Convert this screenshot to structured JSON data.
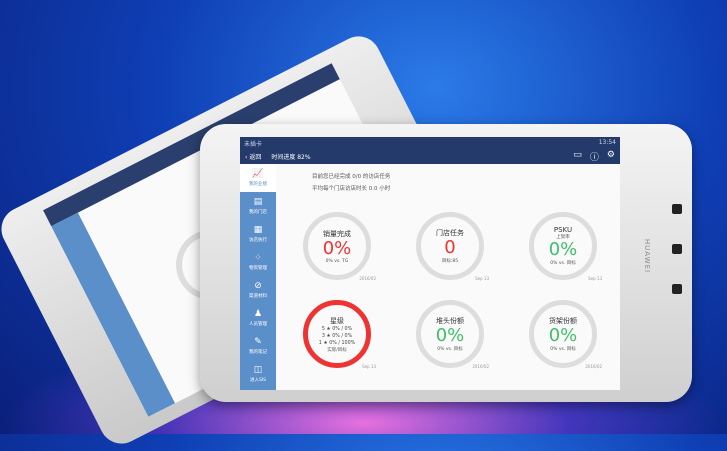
{
  "status": {
    "carrier": "未插卡",
    "time": "13:54"
  },
  "nav": {
    "back": "返回",
    "progress": "时间进度 82%"
  },
  "sidebar": [
    {
      "label": "我的业绩",
      "icon": "chart-icon"
    },
    {
      "label": "我的门店",
      "icon": "store-icon"
    },
    {
      "label": "访店执行",
      "icon": "clipboard-icon"
    },
    {
      "label": "物资管理",
      "icon": "grid-icon"
    },
    {
      "label": "渠道材料",
      "icon": "paperclip-icon"
    },
    {
      "label": "人员管理",
      "icon": "people-icon"
    },
    {
      "label": "我的笔记",
      "icon": "note-icon"
    },
    {
      "label": "进入SIS",
      "icon": "enter-icon"
    }
  ],
  "info": {
    "line1": "目前您已经完成 0/0 的访店任务",
    "line2": "平均每个门店访店时长 0.0 小时"
  },
  "cards": [
    {
      "title": "销量完成",
      "value": "0%",
      "sub": "0% vs. TG",
      "date": "2016/02",
      "color": "#e33333"
    },
    {
      "title": "门店任务",
      "value": "0",
      "sub": "目标:85",
      "date": "Sep 13",
      "color": "#e33333"
    },
    {
      "title": "PSKU",
      "subtitle": "上架率",
      "value": "0%",
      "sub": "0% vs. 目标",
      "date": "Sep 13",
      "color": "#3fbf6a"
    },
    {
      "title": "星级",
      "rows": [
        "5 ★ 0% / 0%",
        "3 ★ 0% / 0%",
        "1 ★ 0% / 100%"
      ],
      "sub": "实际/目标",
      "date": "Sep 13"
    },
    {
      "title": "堆头份额",
      "value": "0%",
      "sub": "0% vs. 目标",
      "date": "2016/02",
      "color": "#3fbf6a"
    },
    {
      "title": "货架份额",
      "value": "0%",
      "sub": "0% vs. 目标",
      "date": "2016/02",
      "color": "#3fbf6a"
    }
  ],
  "brand": "HUAWEI"
}
